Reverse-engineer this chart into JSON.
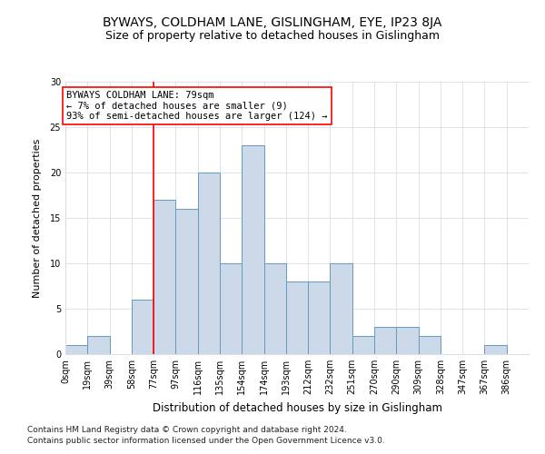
{
  "title1": "BYWAYS, COLDHAM LANE, GISLINGHAM, EYE, IP23 8JA",
  "title2": "Size of property relative to detached houses in Gislingham",
  "xlabel": "Distribution of detached houses by size in Gislingham",
  "ylabel": "Number of detached properties",
  "bin_labels": [
    "0sqm",
    "19sqm",
    "39sqm",
    "58sqm",
    "77sqm",
    "97sqm",
    "116sqm",
    "135sqm",
    "154sqm",
    "174sqm",
    "193sqm",
    "212sqm",
    "232sqm",
    "251sqm",
    "270sqm",
    "290sqm",
    "309sqm",
    "328sqm",
    "347sqm",
    "367sqm",
    "386sqm"
  ],
  "bar_heights": [
    1,
    2,
    0,
    6,
    17,
    16,
    20,
    10,
    23,
    10,
    8,
    8,
    10,
    2,
    3,
    3,
    2,
    0,
    0,
    1,
    0
  ],
  "bar_color": "#ccd9e8",
  "bar_edge_color": "#6699bb",
  "red_line_bin": 4,
  "annotation_text": "BYWAYS COLDHAM LANE: 79sqm\n← 7% of detached houses are smaller (9)\n93% of semi-detached houses are larger (124) →",
  "annotation_box_color": "white",
  "annotation_box_edge_color": "red",
  "footnote1": "Contains HM Land Registry data © Crown copyright and database right 2024.",
  "footnote2": "Contains public sector information licensed under the Open Government Licence v3.0.",
  "ylim": [
    0,
    30
  ],
  "grid_color": "#d8dde8",
  "title1_fontsize": 10,
  "title2_fontsize": 9,
  "xlabel_fontsize": 8.5,
  "ylabel_fontsize": 8,
  "tick_fontsize": 7,
  "footnote_fontsize": 6.5,
  "annotation_fontsize": 7.5
}
